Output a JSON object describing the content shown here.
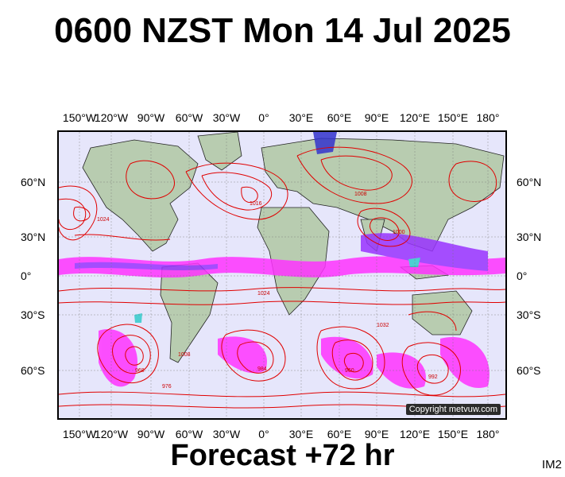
{
  "header": {
    "title": "0600 NZST Mon 14 Jul 2025"
  },
  "footer": {
    "forecast": "Forecast +72 hr",
    "code": "IM2"
  },
  "map": {
    "copyright": "Copyright metvuw.com",
    "lon_labels": [
      "150°W",
      "120°W",
      "90°W",
      "60°W",
      "30°W",
      "0°",
      "30°E",
      "60°E",
      "90°E",
      "120°E",
      "150°E",
      "180°"
    ],
    "lat_labels": [
      "60°N",
      "30°N",
      "0°",
      "30°S",
      "60°S"
    ],
    "isobar_values": [
      "1024",
      "1016",
      "1008",
      "1000",
      "992",
      "984",
      "976",
      "968",
      "960",
      "1032"
    ],
    "colors": {
      "ocean": "#e6e6fb",
      "land": "#b8ccb0",
      "isobar": "#e00000",
      "precip_light": "#ff33ff",
      "precip_med": "#9933ff",
      "precip_heavy": "#3333cc",
      "precip_cyan": "#33cccc"
    }
  }
}
